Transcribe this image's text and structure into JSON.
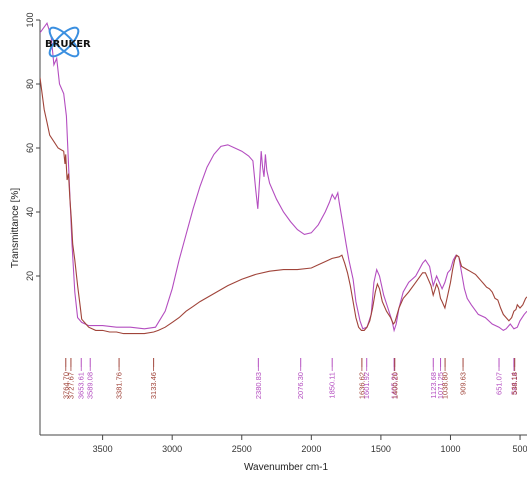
{
  "logo": {
    "text": "BRUKER"
  },
  "chart_data": {
    "type": "line",
    "title": "",
    "xlabel": "Wavenumber cm-1",
    "ylabel": "Transmittance [%]",
    "xlim": [
      3950,
      450
    ],
    "ylim": [
      0,
      100
    ],
    "x_ticks": [
      3500,
      3000,
      2500,
      2000,
      1500,
      1000,
      500
    ],
    "x_tick_labels": [
      "3500",
      "3000",
      "2500",
      "2000",
      "1500",
      "1000",
      "500"
    ],
    "y_ticks": [
      20,
      40,
      60,
      80,
      100
    ],
    "y_tick_labels": [
      "20",
      "40",
      "60",
      "80",
      "100"
    ],
    "colors": {
      "series_purple": "#b44ec0",
      "series_brown": "#a0443a",
      "axis": "#444444"
    },
    "series": [
      {
        "color": "#b44ec0",
        "points": [
          [
            3950,
            96
          ],
          [
            3900,
            99
          ],
          [
            3870,
            95
          ],
          [
            3850,
            86
          ],
          [
            3830,
            88
          ],
          [
            3810,
            80
          ],
          [
            3780,
            77
          ],
          [
            3760,
            70
          ],
          [
            3740,
            50
          ],
          [
            3720,
            30
          ],
          [
            3700,
            15
          ],
          [
            3680,
            7
          ],
          [
            3650,
            5.5
          ],
          [
            3600,
            4.5
          ],
          [
            3500,
            4.5
          ],
          [
            3400,
            4
          ],
          [
            3300,
            4
          ],
          [
            3200,
            3.5
          ],
          [
            3120,
            4
          ],
          [
            3050,
            9
          ],
          [
            3000,
            16
          ],
          [
            2950,
            25
          ],
          [
            2900,
            33
          ],
          [
            2850,
            41
          ],
          [
            2800,
            48
          ],
          [
            2750,
            54
          ],
          [
            2700,
            58
          ],
          [
            2650,
            60.5
          ],
          [
            2600,
            61
          ],
          [
            2550,
            60
          ],
          [
            2500,
            59
          ],
          [
            2450,
            57.5
          ],
          [
            2420,
            56
          ],
          [
            2400,
            47
          ],
          [
            2385,
            41
          ],
          [
            2370,
            51
          ],
          [
            2360,
            59
          ],
          [
            2350,
            54
          ],
          [
            2340,
            51
          ],
          [
            2330,
            58
          ],
          [
            2320,
            53
          ],
          [
            2300,
            49
          ],
          [
            2250,
            44
          ],
          [
            2200,
            40
          ],
          [
            2150,
            37
          ],
          [
            2100,
            34.5
          ],
          [
            2050,
            33
          ],
          [
            2000,
            33.5
          ],
          [
            1950,
            36
          ],
          [
            1900,
            40
          ],
          [
            1870,
            43
          ],
          [
            1850,
            45.5
          ],
          [
            1830,
            44
          ],
          [
            1810,
            46
          ],
          [
            1800,
            43
          ],
          [
            1780,
            38
          ],
          [
            1750,
            30
          ],
          [
            1730,
            25
          ],
          [
            1700,
            19
          ],
          [
            1680,
            12
          ],
          [
            1650,
            6
          ],
          [
            1630,
            3.5
          ],
          [
            1600,
            4
          ],
          [
            1570,
            8
          ],
          [
            1550,
            18
          ],
          [
            1530,
            22
          ],
          [
            1510,
            20
          ],
          [
            1480,
            14
          ],
          [
            1450,
            10
          ],
          [
            1420,
            6
          ],
          [
            1405,
            3
          ],
          [
            1390,
            5
          ],
          [
            1370,
            10
          ],
          [
            1340,
            15
          ],
          [
            1300,
            18
          ],
          [
            1250,
            20
          ],
          [
            1200,
            24
          ],
          [
            1180,
            25
          ],
          [
            1150,
            23
          ],
          [
            1124,
            17
          ],
          [
            1100,
            20
          ],
          [
            1080,
            18
          ],
          [
            1060,
            16
          ],
          [
            1040,
            18
          ],
          [
            1020,
            21
          ],
          [
            1000,
            22
          ],
          [
            980,
            25
          ],
          [
            960,
            26.5
          ],
          [
            940,
            26
          ],
          [
            920,
            21
          ],
          [
            900,
            16
          ],
          [
            880,
            13
          ],
          [
            850,
            11
          ],
          [
            800,
            8
          ],
          [
            750,
            7
          ],
          [
            700,
            5
          ],
          [
            651,
            4
          ],
          [
            620,
            3
          ],
          [
            600,
            3.5
          ],
          [
            570,
            5
          ],
          [
            544,
            3.5
          ],
          [
            520,
            4
          ],
          [
            500,
            6
          ],
          [
            470,
            8
          ],
          [
            450,
            9
          ]
        ]
      },
      {
        "color": "#a0443a",
        "points": [
          [
            3950,
            82
          ],
          [
            3920,
            72
          ],
          [
            3900,
            68
          ],
          [
            3880,
            64
          ],
          [
            3850,
            62
          ],
          [
            3820,
            60
          ],
          [
            3800,
            59.5
          ],
          [
            3780,
            59
          ],
          [
            3770,
            55
          ],
          [
            3765,
            58
          ],
          [
            3755,
            50
          ],
          [
            3745,
            52
          ],
          [
            3735,
            44
          ],
          [
            3725,
            38
          ],
          [
            3715,
            30
          ],
          [
            3700,
            25
          ],
          [
            3680,
            17
          ],
          [
            3660,
            10
          ],
          [
            3650,
            6.5
          ],
          [
            3620,
            5
          ],
          [
            3600,
            4
          ],
          [
            3550,
            3
          ],
          [
            3500,
            3
          ],
          [
            3450,
            2.5
          ],
          [
            3400,
            2.5
          ],
          [
            3350,
            2
          ],
          [
            3300,
            2
          ],
          [
            3250,
            2
          ],
          [
            3200,
            2
          ],
          [
            3133,
            2.5
          ],
          [
            3100,
            3
          ],
          [
            3050,
            4
          ],
          [
            3000,
            5.5
          ],
          [
            2950,
            7
          ],
          [
            2900,
            9
          ],
          [
            2850,
            10.5
          ],
          [
            2800,
            12
          ],
          [
            2700,
            14.5
          ],
          [
            2600,
            17
          ],
          [
            2500,
            19
          ],
          [
            2400,
            20.5
          ],
          [
            2300,
            21.5
          ],
          [
            2200,
            22
          ],
          [
            2100,
            22
          ],
          [
            2000,
            22.5
          ],
          [
            1950,
            23.5
          ],
          [
            1900,
            24.5
          ],
          [
            1850,
            25.5
          ],
          [
            1800,
            26
          ],
          [
            1780,
            26.5
          ],
          [
            1760,
            24
          ],
          [
            1740,
            21
          ],
          [
            1720,
            17
          ],
          [
            1700,
            12
          ],
          [
            1680,
            7
          ],
          [
            1660,
            4
          ],
          [
            1640,
            3
          ],
          [
            1620,
            3
          ],
          [
            1600,
            4
          ],
          [
            1580,
            6
          ],
          [
            1560,
            10
          ],
          [
            1540,
            15
          ],
          [
            1525,
            17.5
          ],
          [
            1510,
            16
          ],
          [
            1490,
            12
          ],
          [
            1460,
            9
          ],
          [
            1430,
            7
          ],
          [
            1410,
            5
          ],
          [
            1400,
            5.5
          ],
          [
            1390,
            7
          ],
          [
            1370,
            10
          ],
          [
            1340,
            13
          ],
          [
            1300,
            15
          ],
          [
            1250,
            18
          ],
          [
            1200,
            21
          ],
          [
            1180,
            21
          ],
          [
            1160,
            19
          ],
          [
            1140,
            17
          ],
          [
            1124,
            14
          ],
          [
            1110,
            16
          ],
          [
            1100,
            17.5
          ],
          [
            1085,
            16
          ],
          [
            1072,
            13
          ],
          [
            1060,
            12
          ],
          [
            1040,
            10
          ],
          [
            1020,
            14
          ],
          [
            1000,
            18
          ],
          [
            985,
            22
          ],
          [
            970,
            25
          ],
          [
            955,
            26.5
          ],
          [
            940,
            26
          ],
          [
            920,
            23
          ],
          [
            900,
            22.5
          ],
          [
            880,
            22
          ],
          [
            860,
            21.5
          ],
          [
            840,
            21
          ],
          [
            820,
            20.5
          ],
          [
            800,
            19.5
          ],
          [
            780,
            18.5
          ],
          [
            760,
            17.5
          ],
          [
            740,
            16.5
          ],
          [
            720,
            16
          ],
          [
            700,
            15
          ],
          [
            680,
            13
          ],
          [
            660,
            12.5
          ],
          [
            640,
            10
          ],
          [
            620,
            8
          ],
          [
            600,
            7
          ],
          [
            580,
            6
          ],
          [
            560,
            7
          ],
          [
            544,
            9
          ],
          [
            530,
            9.5
          ],
          [
            520,
            11
          ],
          [
            500,
            10
          ],
          [
            480,
            11
          ],
          [
            460,
            13
          ],
          [
            450,
            13.5
          ]
        ]
      }
    ],
    "peak_markers": [
      {
        "wavenumber": 3764.7,
        "label": "3764.70",
        "color": "#a0443a"
      },
      {
        "wavenumber": 3727.67,
        "label": "3727.67",
        "color": "#a0443a"
      },
      {
        "wavenumber": 3653.61,
        "label": "3653.61",
        "color": "#b44ec0"
      },
      {
        "wavenumber": 3589.08,
        "label": "3589.08",
        "color": "#b44ec0"
      },
      {
        "wavenumber": 3381.76,
        "label": "3381.76",
        "color": "#a0443a"
      },
      {
        "wavenumber": 3133.46,
        "label": "3133.46",
        "color": "#a0443a"
      },
      {
        "wavenumber": 2380.83,
        "label": "2380.83",
        "color": "#b44ec0"
      },
      {
        "wavenumber": 2076.3,
        "label": "2076.30",
        "color": "#b44ec0"
      },
      {
        "wavenumber": 1850.11,
        "label": "1850.11",
        "color": "#b44ec0"
      },
      {
        "wavenumber": 1636.62,
        "label": "1636.62",
        "color": "#a0443a"
      },
      {
        "wavenumber": 1601.92,
        "label": "1601.92",
        "color": "#b44ec0"
      },
      {
        "wavenumber": 1405.21,
        "label": "1405.21",
        "color": "#b44ec0"
      },
      {
        "wavenumber": 1400.2,
        "label": "1400.20",
        "color": "#a0443a"
      },
      {
        "wavenumber": 1123.68,
        "label": "1123.68",
        "color": "#b44ec0"
      },
      {
        "wavenumber": 1071.25,
        "label": "1071.25",
        "color": "#b44ec0"
      },
      {
        "wavenumber": 1038.8,
        "label": "1038.80",
        "color": "#a0443a"
      },
      {
        "wavenumber": 909.63,
        "label": "909.63",
        "color": "#a0443a"
      },
      {
        "wavenumber": 651.07,
        "label": "651.07",
        "color": "#b44ec0"
      },
      {
        "wavenumber": 544.14,
        "label": "544.14",
        "color": "#b44ec0"
      },
      {
        "wavenumber": 538.18,
        "label": "538.18",
        "color": "#a0443a"
      }
    ],
    "grid": false,
    "legend": "none"
  }
}
